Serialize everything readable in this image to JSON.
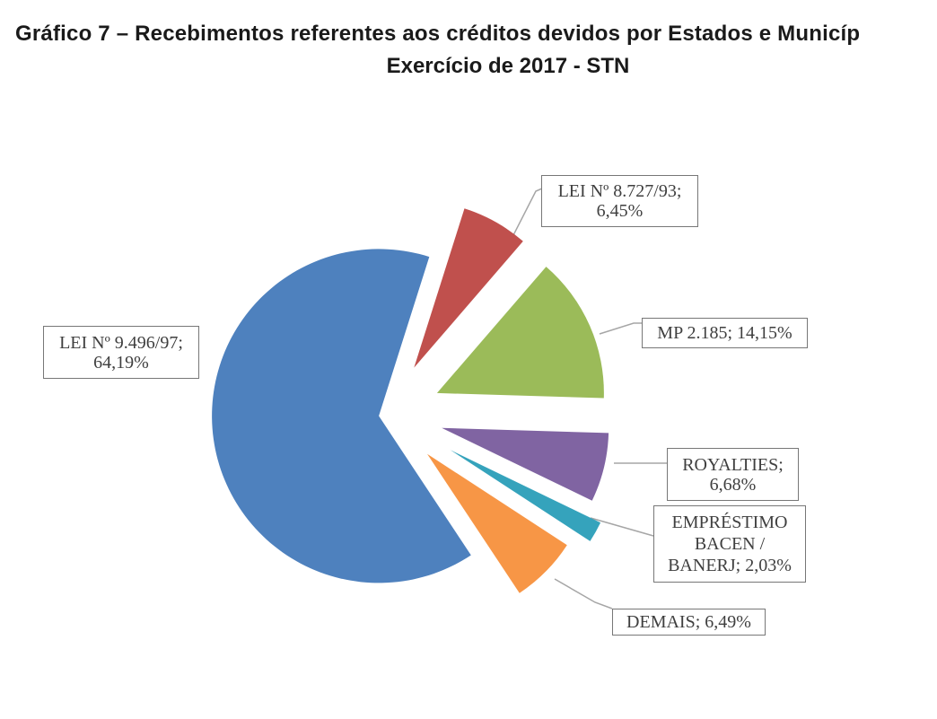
{
  "chart_data": {
    "type": "pie",
    "title": "Gráfico 7 – Recebimentos referentes aos créditos devidos por Estados e Municíp",
    "subtitle": "Exercício de 2017 - STN",
    "legend_position": "callouts",
    "start_angle_deg": 146.5,
    "slices": [
      {
        "label": "LEI Nº 9.496/97",
        "value": 64.19,
        "color": "#4E81BE"
      },
      {
        "label": "LEI Nº 8.727/93",
        "value": 6.45,
        "color": "#C0504D"
      },
      {
        "label": "MP 2.185",
        "value": 14.15,
        "color": "#9BBB59"
      },
      {
        "label": "ROYALTIES",
        "value": 6.68,
        "color": "#8064A2"
      },
      {
        "label": "EMPRÉSTIMO BACEN / BANERJ",
        "value": 2.03,
        "color": "#35A3BC"
      },
      {
        "label": "DEMAIS",
        "value": 6.49,
        "color": "#F79646"
      }
    ]
  },
  "callouts": [
    {
      "name": "lei-9496",
      "lines": [
        "LEI Nº 9.496/97;",
        "64,19%"
      ]
    },
    {
      "name": "lei-8727",
      "lines": [
        "LEI Nº 8.727/93;",
        "6,45%"
      ]
    },
    {
      "name": "mp-2185",
      "lines": [
        "MP 2.185; 14,15%"
      ]
    },
    {
      "name": "royalties",
      "lines": [
        "ROYALTIES;",
        "6,68%"
      ]
    },
    {
      "name": "emprestimo",
      "lines": [
        "EMPRÉSTIMO",
        "BACEN /",
        "BANERJ; 2,03%"
      ]
    },
    {
      "name": "demais",
      "lines": [
        "DEMAIS; 6,49%"
      ]
    }
  ],
  "colors": {
    "leader_line": "#a6a6a6",
    "callout_border": "#777777",
    "callout_text": "#3f3f3f",
    "title_text": "#1a1a1a"
  }
}
